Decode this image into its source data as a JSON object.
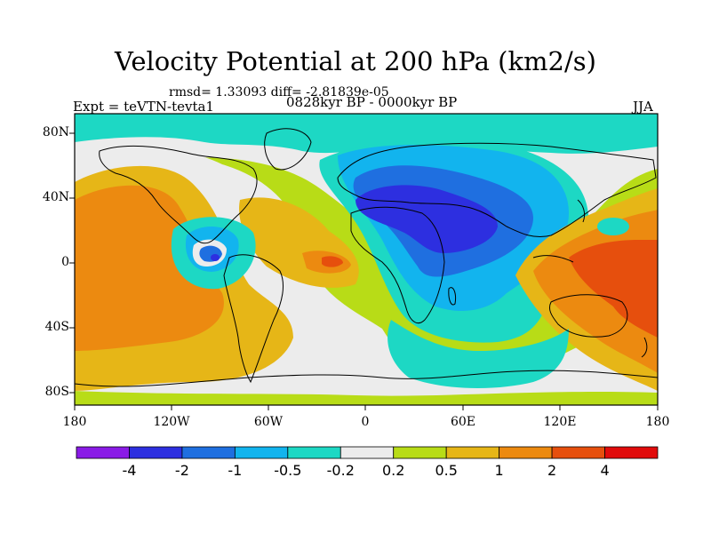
{
  "title": "Velocity Potential at 200 hPa (km2/s)",
  "stats": "rmsd= 1.33093 diff= -2.81839e-05",
  "experiment": "Expt = teVTN-tevta1",
  "period": "0828kyr BP - 0000kyr BP",
  "season": "JJA",
  "lat_labels": [
    "80N",
    "40N",
    "0",
    "40S",
    "80S"
  ],
  "lon_labels": [
    "180",
    "120W",
    "60W",
    "0",
    "60E",
    "120E",
    "180"
  ],
  "colorbar": {
    "labels": [
      "-4",
      "-2",
      "-1",
      "-0.5",
      "-0.2",
      "0.2",
      "0.5",
      "1",
      "2",
      "4"
    ],
    "colors": [
      "#8a1be6",
      "#2d2fe0",
      "#1f6fe0",
      "#12b4ee",
      "#1dd8c4",
      "#ececec",
      "#b8dc17",
      "#e6b617",
      "#ec8a10",
      "#e64f0d",
      "#e10b0b"
    ]
  }
}
